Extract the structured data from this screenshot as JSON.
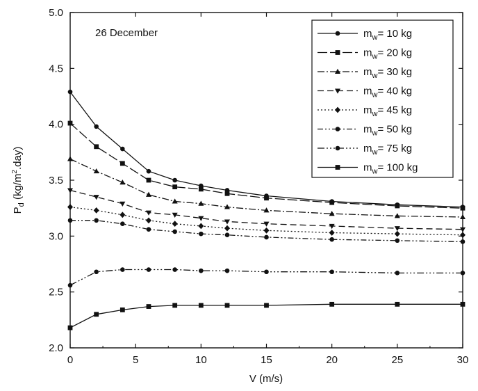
{
  "chart_data": {
    "type": "line",
    "annotation": "26 December",
    "xlabel": "V (m/s)",
    "ylabel": "P_d (kg/m^2.day)",
    "ylabel_parts": {
      "p": "P",
      "sub": "d",
      "rest1": " (kg/m",
      "sup": "2",
      "rest2": ".day)"
    },
    "xlim": [
      0,
      30
    ],
    "ylim": [
      2.0,
      5.0
    ],
    "xticks": [
      "0",
      "5",
      "10",
      "15",
      "20",
      "25",
      "30"
    ],
    "yticks": [
      "2.0",
      "2.5",
      "3.0",
      "3.5",
      "4.0",
      "4.5",
      "5.0"
    ],
    "legend_position": "top-right",
    "x": [
      0,
      2,
      4,
      6,
      8,
      10,
      12,
      15,
      20,
      25,
      30
    ],
    "series": [
      {
        "name": "m_w= 10 kg",
        "label_sub": "w",
        "label_rest": "= 10 kg",
        "marker": "circle",
        "dash": "",
        "values": [
          4.29,
          3.98,
          3.78,
          3.58,
          3.5,
          3.45,
          3.41,
          3.36,
          3.31,
          3.28,
          3.26
        ]
      },
      {
        "name": "m_w= 20 kg",
        "label_sub": "w",
        "label_rest": "= 20 kg",
        "marker": "square",
        "dash": "14 4",
        "values": [
          4.01,
          3.8,
          3.65,
          3.5,
          3.44,
          3.42,
          3.38,
          3.34,
          3.3,
          3.27,
          3.25
        ]
      },
      {
        "name": "m_w= 30 kg",
        "label_sub": "w",
        "label_rest": "= 30 kg",
        "marker": "triangle-up",
        "dash": "10 3 2 3",
        "values": [
          3.69,
          3.58,
          3.48,
          3.37,
          3.31,
          3.29,
          3.26,
          3.23,
          3.2,
          3.18,
          3.17
        ]
      },
      {
        "name": "m_w= 40 kg",
        "label_sub": "w",
        "label_rest": "= 40 kg",
        "marker": "triangle-down",
        "dash": "9 5",
        "values": [
          3.41,
          3.35,
          3.29,
          3.21,
          3.19,
          3.16,
          3.13,
          3.11,
          3.09,
          3.07,
          3.06
        ]
      },
      {
        "name": "m_w= 45 kg",
        "label_sub": "w",
        "label_rest": "= 45 kg",
        "marker": "diamond",
        "dash": "2 3",
        "values": [
          3.26,
          3.23,
          3.19,
          3.14,
          3.11,
          3.09,
          3.07,
          3.05,
          3.03,
          3.02,
          3.01
        ]
      },
      {
        "name": "m_w= 50 kg",
        "label_sub": "w",
        "label_rest": "= 50 kg",
        "marker": "circle",
        "dash": "8 3 2 3 2 3",
        "values": [
          3.14,
          3.14,
          3.11,
          3.06,
          3.04,
          3.02,
          3.01,
          2.99,
          2.97,
          2.96,
          2.95
        ]
      },
      {
        "name": "m_w= 75 kg",
        "label_sub": "w",
        "label_rest": "= 75 kg",
        "marker": "circle",
        "dash": "10 3 2 3 2 3 2 3",
        "values": [
          2.56,
          2.68,
          2.7,
          2.7,
          2.7,
          2.69,
          2.69,
          2.68,
          2.68,
          2.67,
          2.67
        ]
      },
      {
        "name": "m_w= 100 kg",
        "label_sub": "w",
        "label_rest": "= 100 kg",
        "marker": "square",
        "dash": "",
        "values": [
          2.18,
          2.3,
          2.34,
          2.37,
          2.38,
          2.38,
          2.38,
          2.38,
          2.39,
          2.39,
          2.39
        ]
      }
    ]
  }
}
